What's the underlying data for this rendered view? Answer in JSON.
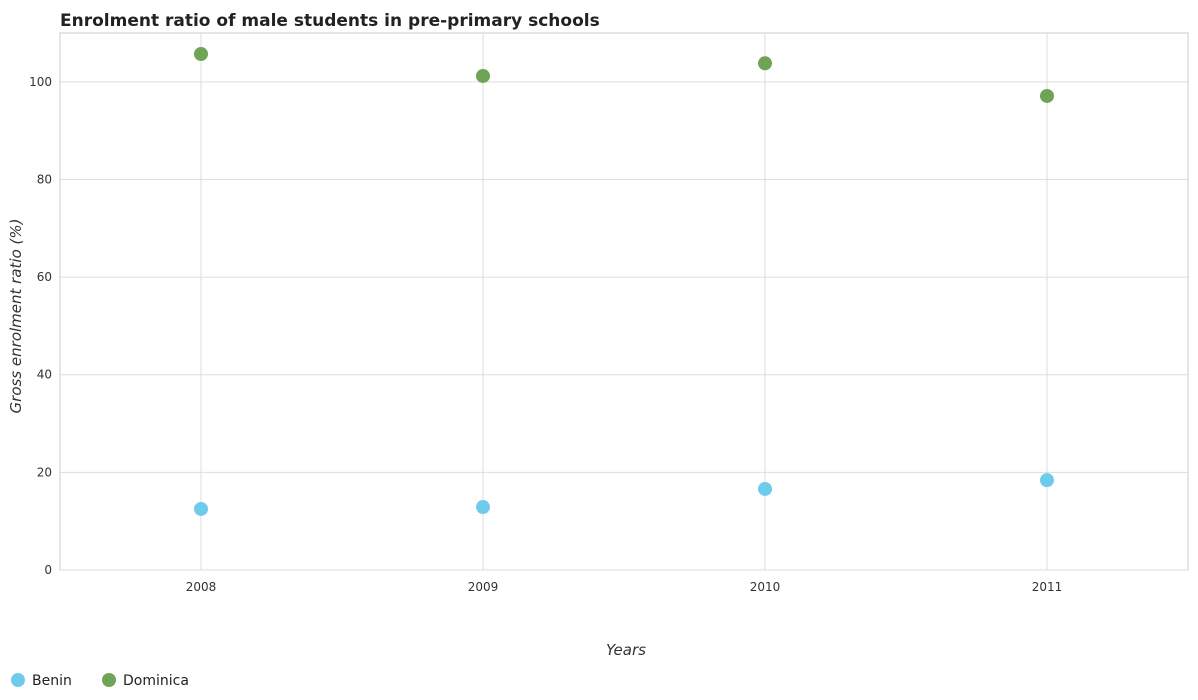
{
  "chart_data": {
    "type": "scatter",
    "title": "Enrolment ratio of male students in pre-primary schools",
    "xlabel": "Years",
    "ylabel": "Gross enrolment ratio (%)",
    "categories": [
      "2008",
      "2009",
      "2010",
      "2011"
    ],
    "ylim": [
      0,
      110
    ],
    "yticks": [
      "0",
      "20",
      "40",
      "60",
      "80",
      "100"
    ],
    "grid": true,
    "legend_position": "bottom-left",
    "series": [
      {
        "name": "Benin",
        "color": "#6fcbeb",
        "values": [
          12.5,
          12.9,
          16.6,
          18.4
        ]
      },
      {
        "name": "Dominica",
        "color": "#6fa356",
        "values": [
          105.7,
          101.2,
          103.8,
          97.1
        ]
      }
    ]
  }
}
